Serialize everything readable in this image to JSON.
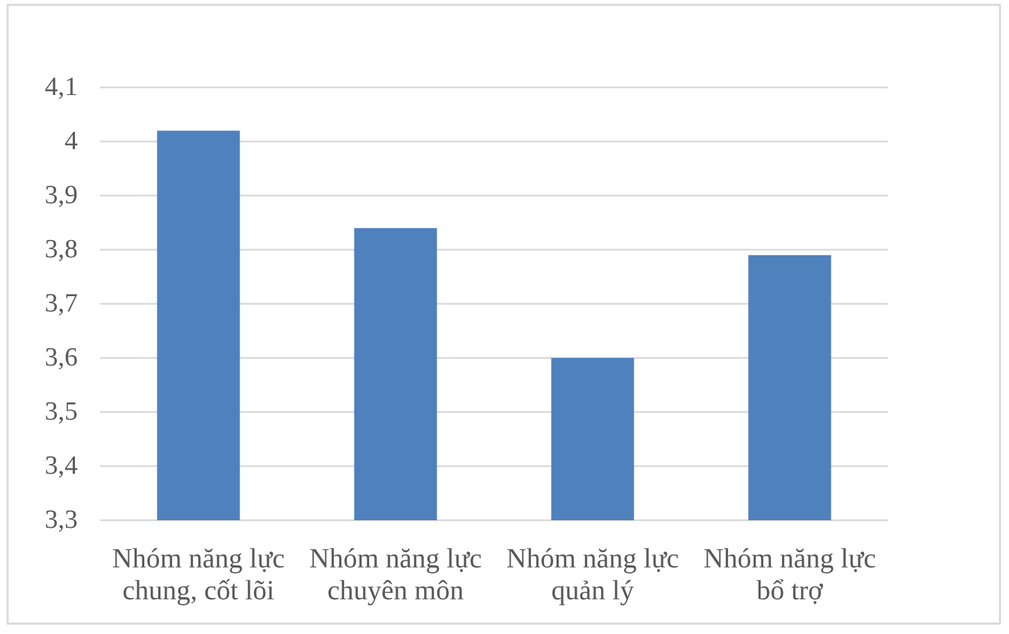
{
  "chart_data": {
    "type": "bar",
    "categories": [
      "Nhóm năng lực chung, cốt lõi",
      "Nhóm năng lực chuyên môn",
      "Nhóm năng lực quản lý",
      "Nhóm năng lực bổ trợ"
    ],
    "values": [
      4.02,
      3.84,
      3.6,
      3.79
    ],
    "color": "#4f81bd",
    "ylim": [
      3.3,
      4.1
    ],
    "yticks": [
      {
        "value": 3.3,
        "label": "3,3"
      },
      {
        "value": 3.4,
        "label": "3,4"
      },
      {
        "value": 3.5,
        "label": "3,5"
      },
      {
        "value": 3.6,
        "label": "3,6"
      },
      {
        "value": 3.7,
        "label": "3,7"
      },
      {
        "value": 3.8,
        "label": "3,8"
      },
      {
        "value": 3.9,
        "label": "3,9"
      },
      4,
      {
        "value": 4.1,
        "label": "4,1"
      }
    ],
    "grid": "y"
  }
}
